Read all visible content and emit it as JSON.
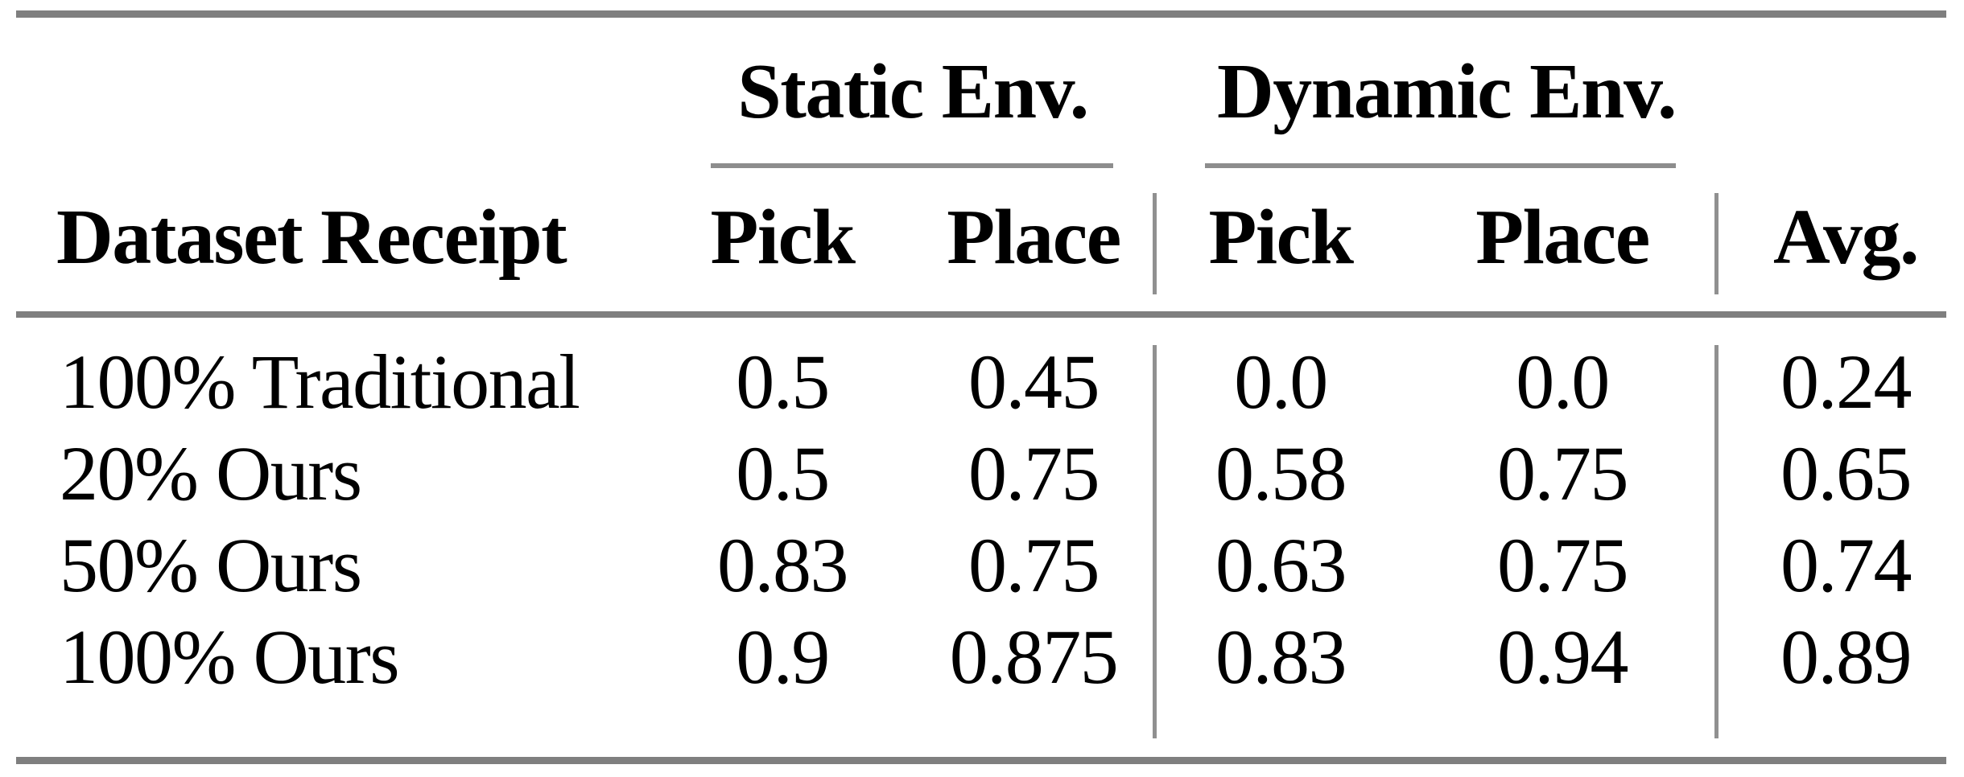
{
  "table": {
    "groups": [
      {
        "label": "Static Env."
      },
      {
        "label": "Dynamic Env."
      }
    ],
    "headers": {
      "dataset": "Dataset Receipt",
      "static_pick": "Pick",
      "static_place": "Place",
      "dynamic_pick": "Pick",
      "dynamic_place": "Place",
      "avg": "Avg."
    },
    "rows": [
      {
        "label": "100% Traditional",
        "static_pick": "0.5",
        "static_place": "0.45",
        "dynamic_pick": "0.0",
        "dynamic_place": "0.0",
        "avg": "0.24"
      },
      {
        "label": "20% Ours",
        "static_pick": "0.5",
        "static_place": "0.75",
        "dynamic_pick": "0.58",
        "dynamic_place": "0.75",
        "avg": "0.65"
      },
      {
        "label": "50% Ours",
        "static_pick": "0.83",
        "static_place": "0.75",
        "dynamic_pick": "0.63",
        "dynamic_place": "0.75",
        "avg": "0.74"
      },
      {
        "label": "100% Ours",
        "static_pick": "0.9",
        "static_place": "0.875",
        "dynamic_pick": "0.83",
        "dynamic_place": "0.94",
        "avg": "0.89"
      }
    ],
    "colors": {
      "thick_rule": "#7f7f7f",
      "thin_rule": "#909090",
      "text": "#000000",
      "background": "#ffffff"
    }
  },
  "chart_data": {
    "type": "table",
    "title": "",
    "columns": [
      "Dataset Receipt",
      "Static Env. Pick",
      "Static Env. Place",
      "Dynamic Env. Pick",
      "Dynamic Env. Place",
      "Avg."
    ],
    "rows": [
      [
        "100% Traditional",
        0.5,
        0.45,
        0.0,
        0.0,
        0.24
      ],
      [
        "20% Ours",
        0.5,
        0.75,
        0.58,
        0.75,
        0.65
      ],
      [
        "50% Ours",
        0.83,
        0.75,
        0.63,
        0.75,
        0.74
      ],
      [
        "100% Ours",
        0.9,
        0.875,
        0.83,
        0.94,
        0.89
      ]
    ]
  }
}
